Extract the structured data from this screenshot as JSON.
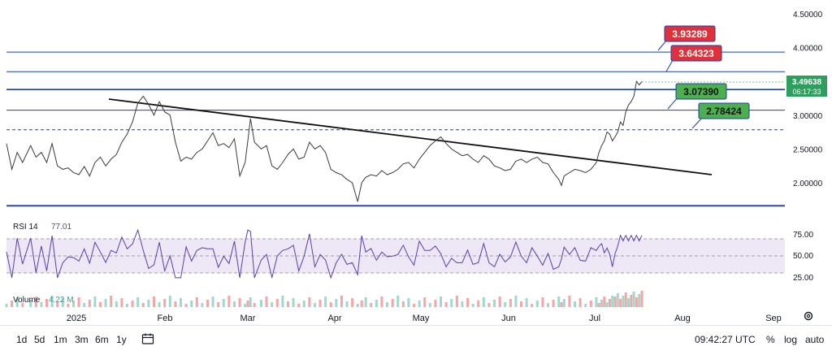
{
  "chart_data": {
    "type": "line",
    "price_axis": {
      "ticks": [
        "4.50000",
        "4.00000",
        "3.50000",
        "3.00000",
        "2.50000",
        "2.00000"
      ],
      "values": [
        4.5,
        4.0,
        3.5,
        3.0,
        2.5,
        2.0
      ],
      "range": [
        1.62,
        4.62
      ]
    },
    "time_axis": {
      "labels": [
        "2025",
        "Feb",
        "Mar",
        "Apr",
        "May",
        "Jun",
        "Jul",
        "Aug",
        "Sep"
      ]
    },
    "current_price": {
      "value": "3.49638",
      "countdown": "06:17:33"
    },
    "price_series": [
      [
        0,
        2.58
      ],
      [
        4,
        2.2
      ],
      [
        8,
        2.45
      ],
      [
        12,
        2.3
      ],
      [
        18,
        2.55
      ],
      [
        22,
        2.38
      ],
      [
        26,
        2.45
      ],
      [
        30,
        2.3
      ],
      [
        34,
        2.58
      ],
      [
        38,
        2.25
      ],
      [
        42,
        2.2
      ],
      [
        46,
        2.22
      ],
      [
        50,
        2.15
      ],
      [
        54,
        2.12
      ],
      [
        58,
        2.24
      ],
      [
        62,
        2.1
      ],
      [
        66,
        2.3
      ],
      [
        70,
        2.38
      ],
      [
        74,
        2.25
      ],
      [
        78,
        2.35
      ],
      [
        82,
        2.42
      ],
      [
        86,
        2.6
      ],
      [
        90,
        2.72
      ],
      [
        94,
        2.9
      ],
      [
        98,
        3.18
      ],
      [
        102,
        3.28
      ],
      [
        106,
        3.16
      ],
      [
        110,
        3.0
      ],
      [
        114,
        3.2
      ],
      [
        118,
        3.05
      ],
      [
        122,
        3.0
      ],
      [
        126,
        2.6
      ],
      [
        130,
        2.32
      ],
      [
        134,
        2.38
      ],
      [
        138,
        2.35
      ],
      [
        142,
        2.45
      ],
      [
        146,
        2.5
      ],
      [
        150,
        2.62
      ],
      [
        154,
        2.74
      ],
      [
        158,
        2.55
      ],
      [
        162,
        2.58
      ],
      [
        166,
        2.52
      ],
      [
        170,
        2.65
      ],
      [
        174,
        2.1
      ],
      [
        178,
        2.3
      ],
      [
        180,
        2.62
      ],
      [
        182,
        2.95
      ],
      [
        185,
        2.6
      ],
      [
        190,
        2.5
      ],
      [
        194,
        2.55
      ],
      [
        198,
        2.25
      ],
      [
        202,
        2.2
      ],
      [
        206,
        2.3
      ],
      [
        210,
        2.42
      ],
      [
        214,
        2.5
      ],
      [
        218,
        2.35
      ],
      [
        222,
        2.38
      ],
      [
        226,
        2.6
      ],
      [
        230,
        2.5
      ],
      [
        234,
        2.55
      ],
      [
        238,
        2.45
      ],
      [
        242,
        2.2
      ],
      [
        246,
        2.15
      ],
      [
        250,
        2.12
      ],
      [
        254,
        2.05
      ],
      [
        258,
        2.0
      ],
      [
        262,
        1.72
      ],
      [
        265,
        2.0
      ],
      [
        268,
        2.08
      ],
      [
        272,
        2.12
      ],
      [
        276,
        2.1
      ],
      [
        280,
        2.18
      ],
      [
        284,
        2.12
      ],
      [
        288,
        2.15
      ],
      [
        292,
        2.2
      ],
      [
        296,
        2.28
      ],
      [
        300,
        2.3
      ],
      [
        304,
        2.22
      ],
      [
        308,
        2.35
      ],
      [
        312,
        2.45
      ],
      [
        316,
        2.55
      ],
      [
        320,
        2.62
      ],
      [
        324,
        2.68
      ],
      [
        328,
        2.58
      ],
      [
        332,
        2.5
      ],
      [
        336,
        2.45
      ],
      [
        340,
        2.4
      ],
      [
        344,
        2.42
      ],
      [
        348,
        2.35
      ],
      [
        352,
        2.3
      ],
      [
        356,
        2.4
      ],
      [
        360,
        2.35
      ],
      [
        364,
        2.25
      ],
      [
        368,
        2.22
      ],
      [
        372,
        2.18
      ],
      [
        376,
        2.2
      ],
      [
        380,
        2.32
      ],
      [
        384,
        2.35
      ],
      [
        388,
        2.3
      ],
      [
        392,
        2.35
      ],
      [
        396,
        2.38
      ],
      [
        400,
        2.3
      ],
      [
        404,
        2.28
      ],
      [
        408,
        2.15
      ],
      [
        412,
        2.05
      ],
      [
        414,
        1.96
      ],
      [
        416,
        2.1
      ],
      [
        420,
        2.15
      ],
      [
        424,
        2.2
      ],
      [
        428,
        2.18
      ],
      [
        432,
        2.15
      ],
      [
        436,
        2.2
      ],
      [
        440,
        2.3
      ],
      [
        442,
        2.45
      ],
      [
        444,
        2.55
      ],
      [
        446,
        2.62
      ],
      [
        448,
        2.75
      ],
      [
        450,
        2.72
      ],
      [
        452,
        2.62
      ],
      [
        454,
        2.68
      ],
      [
        456,
        2.75
      ],
      [
        458,
        2.9
      ],
      [
        460,
        2.85
      ],
      [
        462,
        3.05
      ],
      [
        464,
        3.15
      ],
      [
        466,
        3.2
      ],
      [
        468,
        3.28
      ],
      [
        470,
        3.5
      ],
      [
        472,
        3.45
      ],
      [
        474,
        3.49638
      ]
    ],
    "rsi": {
      "label": "RSI 14",
      "value": "77.01",
      "levels": [
        "75.00",
        "50.00",
        "25.00"
      ]
    },
    "volume": {
      "label": "Volume",
      "value": "4.22 M"
    },
    "annotations": [
      "3.93289",
      "3.64323",
      "3.07390",
      "2.78424"
    ]
  },
  "annotation_colors": {
    "red": "#e0303a",
    "green": "#4caf50",
    "line": "#1e3fa8",
    "trend": "#111111",
    "series": "#3a3a3a",
    "rsi_line": "#5b3fa8",
    "rsi_band": "#ede7f6"
  },
  "bottom_bar": {
    "timeframes": [
      "1d",
      "5d",
      "1m",
      "3m",
      "6m",
      "1y"
    ],
    "clock": "09:42:27 UTC",
    "options": [
      "%",
      "log",
      "auto"
    ],
    "icons": {
      "calendar": "calendar-icon",
      "settings": "gear-icon"
    }
  }
}
